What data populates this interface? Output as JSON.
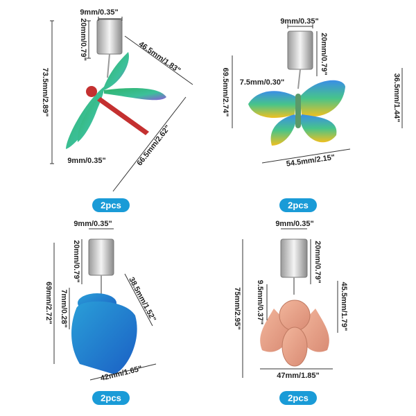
{
  "items": [
    {
      "badge": "2pcs",
      "dimensions": [
        "9mm/0.35\"",
        "20mm/0.79\"",
        "46.5mm/1.83\"",
        "73.5mm/2.89\"",
        "66.5mm/2.62\"",
        "9mm/0.35\""
      ]
    },
    {
      "badge": "2pcs",
      "dimensions": [
        "9mm/0.35\"",
        "20mm/0.79\"",
        "69.5mm/2.74\"",
        "7.5mm/0.30\"",
        "36.5mm/1.44\"",
        "54.5mm/2.15\""
      ]
    },
    {
      "badge": "2pcs",
      "dimensions": [
        "9mm/0.35\"",
        "20mm/0.79\"",
        "69mm/2.72\"",
        "7mm/0.28\"",
        "38.5mm/1.52\"",
        "42mm/1.65\""
      ]
    },
    {
      "badge": "2pcs",
      "dimensions": [
        "9mm/0.35\"",
        "20mm/0.79\"",
        "75mm/2.95\"",
        "9.5mm/0.37\"",
        "45.5mm/1.79\"",
        "47mm/1.85\""
      ]
    }
  ]
}
